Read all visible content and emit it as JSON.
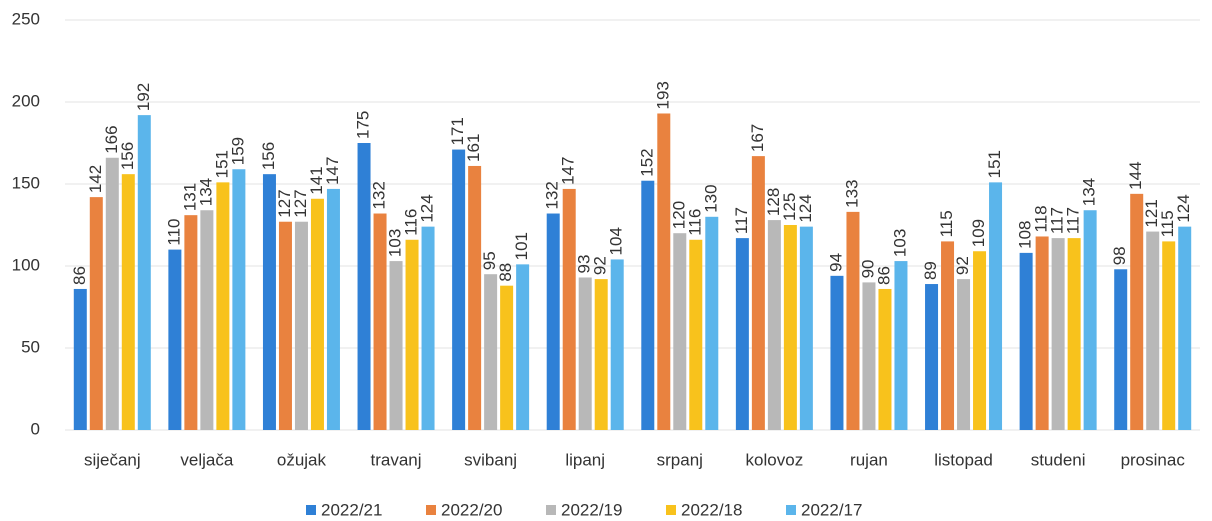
{
  "chart_data": {
    "type": "bar",
    "categories": [
      "siječanj",
      "veljača",
      "ožujak",
      "travanj",
      "svibanj",
      "lipanj",
      "srpanj",
      "kolovoz",
      "rujan",
      "listopad",
      "studeni",
      "prosinac"
    ],
    "series": [
      {
        "name": "2022/21",
        "color": "#2f80d6",
        "values": [
          86,
          110,
          156,
          175,
          171,
          132,
          152,
          117,
          94,
          89,
          108,
          98
        ]
      },
      {
        "name": "2022/20",
        "color": "#e9823f",
        "values": [
          142,
          131,
          127,
          132,
          161,
          147,
          193,
          167,
          133,
          115,
          118,
          144
        ]
      },
      {
        "name": "2022/19",
        "color": "#b8b8b8",
        "values": [
          166,
          134,
          127,
          103,
          95,
          93,
          120,
          128,
          90,
          92,
          117,
          121
        ]
      },
      {
        "name": "2022/18",
        "color": "#f8c21c",
        "values": [
          156,
          151,
          141,
          116,
          88,
          92,
          116,
          125,
          86,
          109,
          117,
          115
        ]
      },
      {
        "name": "2022/17",
        "color": "#5bb5eb",
        "values": [
          192,
          159,
          147,
          124,
          101,
          104,
          130,
          124,
          103,
          151,
          134,
          124
        ]
      }
    ],
    "ylim": [
      0,
      250
    ],
    "yticks": [
      0,
      50,
      100,
      150,
      200,
      250
    ],
    "grid": true,
    "legend": "bottom"
  }
}
